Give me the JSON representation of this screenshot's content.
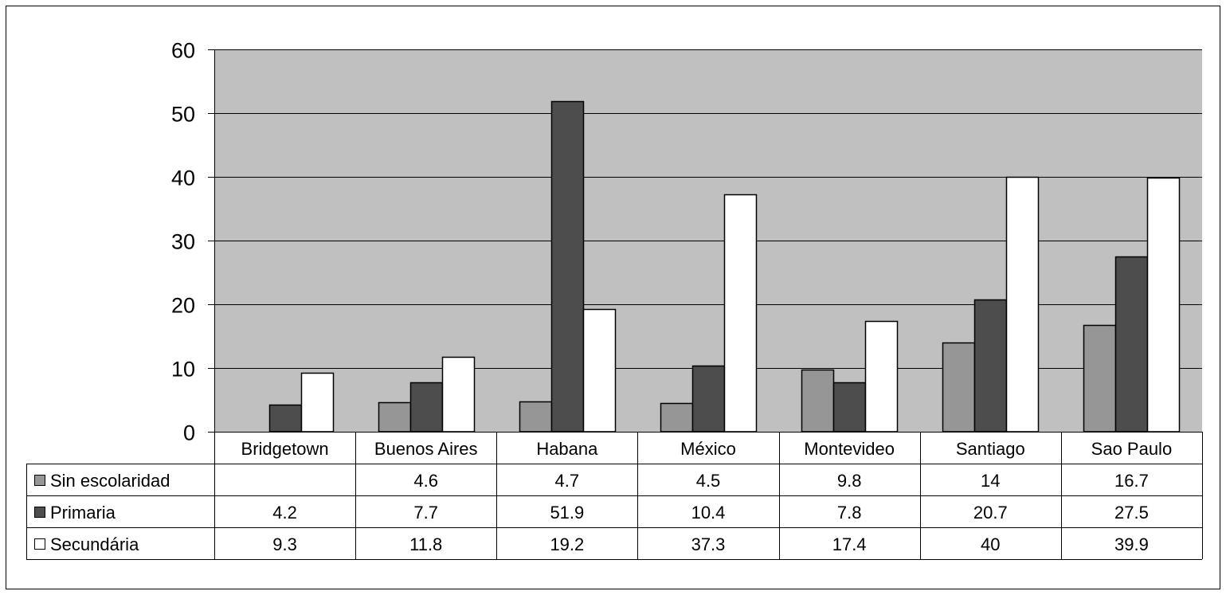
{
  "chart_data": {
    "type": "bar",
    "title": "",
    "xlabel": "",
    "ylabel": "",
    "ylim": [
      0,
      60
    ],
    "yticks": [
      0,
      10,
      20,
      30,
      40,
      50,
      60
    ],
    "grid": true,
    "legend": "data-table",
    "categories": [
      "Bridgetown",
      "Buenos Aires",
      "Habana",
      "México",
      "Montevideo",
      "Santiago",
      "Sao Paulo"
    ],
    "series": [
      {
        "name": "Sin escolaridad",
        "color": "#969696",
        "values": [
          null,
          4.6,
          4.7,
          4.5,
          9.8,
          14,
          16.7
        ]
      },
      {
        "name": "Primaria",
        "color": "#4d4d4d",
        "values": [
          4.2,
          7.7,
          51.9,
          10.4,
          7.8,
          20.7,
          27.5
        ]
      },
      {
        "name": "Secundária",
        "color": "#ffffff",
        "values": [
          9.3,
          11.8,
          19.2,
          37.3,
          17.4,
          40,
          39.9
        ]
      }
    ],
    "plot_background": "#c0c0c0"
  }
}
